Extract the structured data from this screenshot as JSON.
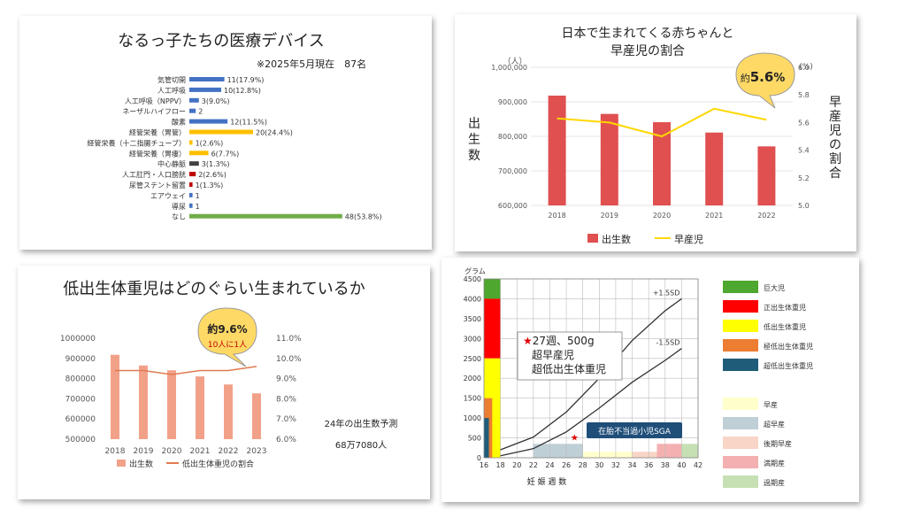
{
  "colors": {
    "blue": "#4472c4",
    "gold": "#ffc000",
    "darkred": "#c00000",
    "gray": "#404040",
    "green": "#70ad47",
    "red_bar": "#e05050",
    "yellow_line": "#ffd700",
    "salmon": "#f2a189",
    "orange_line": "#e07b50"
  },
  "charts": [
    {
      "type": "bar",
      "title": "なるっ子たちの医療デバイス",
      "subtitle": "※2025年5月現在　87名",
      "categories": [
        "気管切開",
        "人工呼吸",
        "人工呼吸（NPPV）",
        "ネーザルハイフロー",
        "酸素",
        "経管栄養（胃管）",
        "経管栄養（十二指腸チューブ）",
        "経管栄養（胃瘻）",
        "中心静脈",
        "人工肛門・人口膀胱",
        "尿管ステント留置",
        "エアウェイ",
        "導尿",
        "なし"
      ],
      "values": [
        11,
        10,
        3,
        2,
        12,
        20,
        1,
        6,
        3,
        2,
        1,
        1,
        1,
        48
      ],
      "data_labels": [
        "11(17.9%)",
        "10(12.8%)",
        "3(9.0%)",
        "2",
        "12(11.5%)",
        "20(24.4%)",
        "1(2.6%)",
        "6(7.7%)",
        "3(1.3%)",
        "2(2.6%)",
        "1(1.3%)",
        "1",
        "1",
        "48(53.8%)"
      ]
    },
    {
      "type": "bar",
      "title_lines": [
        "日本で生まれてくる赤ちゃんと",
        "早産児の割合"
      ],
      "categories": [
        "2018",
        "2019",
        "2020",
        "2021",
        "2022"
      ],
      "series": [
        {
          "name": "出生数",
          "type": "bar",
          "values": [
            918000,
            865000,
            841000,
            811000,
            771000
          ]
        },
        {
          "name": "早産児",
          "type": "line",
          "values": [
            5.63,
            5.6,
            5.5,
            5.7,
            5.62
          ]
        }
      ],
      "ylabel": "出生数",
      "y2label": "早産児の割合",
      "yunit": "（人）",
      "y2unit": "(%)",
      "ylim": [
        600000,
        1000000
      ],
      "y2lim": [
        5.0,
        6.0
      ],
      "yticks": [
        "1,000,000",
        "900,000",
        "800,000",
        "700,000",
        "600,000"
      ],
      "y2ticks": [
        "6.0",
        "5.8",
        "5.6",
        "5.4",
        "5.2",
        "5.0"
      ],
      "callout_prefix": "約",
      "callout_value": "5.6",
      "callout_unit": "%"
    },
    {
      "type": "bar",
      "title": "低出生体重児はどのぐらい生まれているか",
      "categories": [
        "2018",
        "2019",
        "2020",
        "2021",
        "2022",
        "2023"
      ],
      "series": [
        {
          "name": "出生数",
          "type": "bar",
          "values": [
            918000,
            865000,
            841000,
            811000,
            771000,
            727000
          ]
        },
        {
          "name": "低出生体重児の割合",
          "type": "line",
          "values": [
            9.4,
            9.4,
            9.2,
            9.4,
            9.4,
            9.6
          ]
        }
      ],
      "ylim": [
        500000,
        1000000
      ],
      "y2lim": [
        6.0,
        11.0
      ],
      "yticks": [
        "1000000",
        "900000",
        "800000",
        "700000",
        "600000",
        "500000"
      ],
      "y2ticks": [
        "11.0%",
        "10.0%",
        "9.0%",
        "8.0%",
        "7.0%",
        "6.0%"
      ],
      "callout_main": "約9.6%",
      "callout_sub": "10人に1人",
      "note_line1": "24年の出生数予測",
      "note_line2": "68万7080人"
    },
    {
      "type": "line",
      "yunit": "グラム",
      "xlabel": "妊 娠 週 数",
      "xticks": [
        "16",
        "18",
        "20",
        "22",
        "24",
        "26",
        "28",
        "30",
        "32",
        "34",
        "36",
        "38",
        "40",
        "42"
      ],
      "yticks": [
        "4500",
        "4000",
        "3500",
        "3000",
        "2500",
        "2000",
        "1500",
        "1000",
        "500",
        "0"
      ],
      "xlim": [
        16,
        42
      ],
      "ylim": [
        0,
        4500
      ],
      "series": [
        {
          "name": "+1.5SD",
          "x": [
            18,
            22,
            26,
            30,
            34,
            38,
            40
          ],
          "y": [
            200,
            520,
            1150,
            2000,
            2950,
            3700,
            4000
          ]
        },
        {
          "name": "-1.5SD",
          "x": [
            18,
            22,
            26,
            30,
            34,
            38,
            40
          ],
          "y": [
            50,
            230,
            650,
            1250,
            1900,
            2450,
            2750
          ]
        }
      ],
      "point_label": "★",
      "point": {
        "x": 27,
        "y": 500
      },
      "annotation_lines": [
        "★27週、500g",
        "超早産児",
        "超低出生体重児"
      ],
      "sga_label": "在胎不当過小児SGA",
      "legend_weight": [
        {
          "label": "巨大児",
          "color": "#4ea72e"
        },
        {
          "label": "正出生体重児",
          "color": "#ff0000"
        },
        {
          "label": "低出生体重児",
          "color": "#ffff00"
        },
        {
          "label": "極低出生体重児",
          "color": "#ed7d31"
        },
        {
          "label": "超低出生体重児",
          "color": "#1f5c7a"
        }
      ],
      "legend_term": [
        {
          "label": "早産",
          "color": "#ffffcc"
        },
        {
          "label": "超早産",
          "color": "#bfcfd6"
        },
        {
          "label": "後期早産",
          "color": "#f8d5c6"
        },
        {
          "label": "満期産",
          "color": "#f4b0b0"
        },
        {
          "label": "過期産",
          "color": "#c6e0b4"
        }
      ]
    }
  ]
}
